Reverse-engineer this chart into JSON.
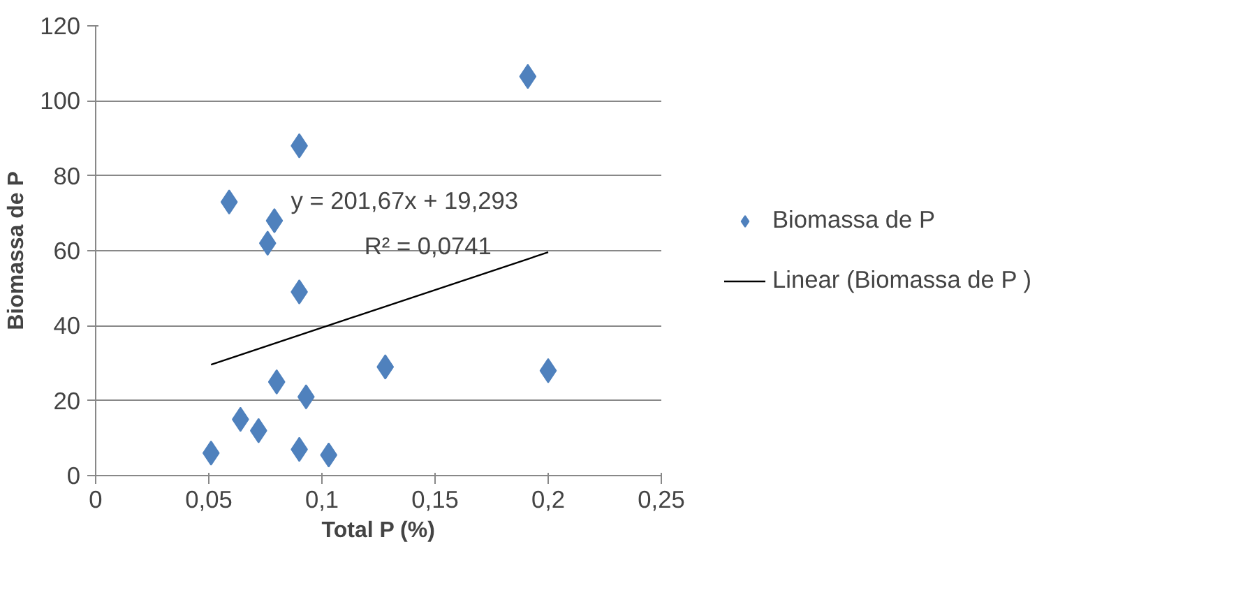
{
  "chart_data": {
    "type": "scatter",
    "xlabel": "Total P (%)",
    "ylabel": "Biomassa de P",
    "xlim": [
      0,
      0.25
    ],
    "ylim": [
      0,
      120
    ],
    "xticks": [
      0,
      {
        "value": 0.05,
        "label": "0,05"
      },
      {
        "value": 0.1,
        "label": "0,1"
      },
      {
        "value": 0.15,
        "label": "0,15"
      },
      {
        "value": 0.2,
        "label": "0,2"
      },
      {
        "value": 0.25,
        "label": "0,25"
      }
    ],
    "yticks": [
      0,
      20,
      40,
      60,
      80,
      100,
      120
    ],
    "grid": "y",
    "legend": "right",
    "marker": "diamond",
    "annotations": [
      "y = 201,67x + 19,293",
      "R² = 0,0741"
    ],
    "series": [
      {
        "name": "Biomassa de P",
        "color": "#4f81bd",
        "x": [
          0.051,
          0.059,
          0.064,
          0.072,
          0.076,
          0.079,
          0.08,
          0.09,
          0.09,
          0.09,
          0.093,
          0.103,
          0.128,
          0.191,
          0.2
        ],
        "values": [
          6,
          73,
          15,
          12,
          62,
          68,
          25,
          88,
          49,
          7,
          21,
          5.5,
          29,
          106.5,
          28
        ]
      },
      {
        "name": "Linear (Biomassa de P )",
        "type": "line",
        "color": "#000000",
        "marker": "none",
        "x": [
          0.051,
          0.2
        ],
        "values": [
          29.6,
          59.6
        ]
      }
    ]
  }
}
